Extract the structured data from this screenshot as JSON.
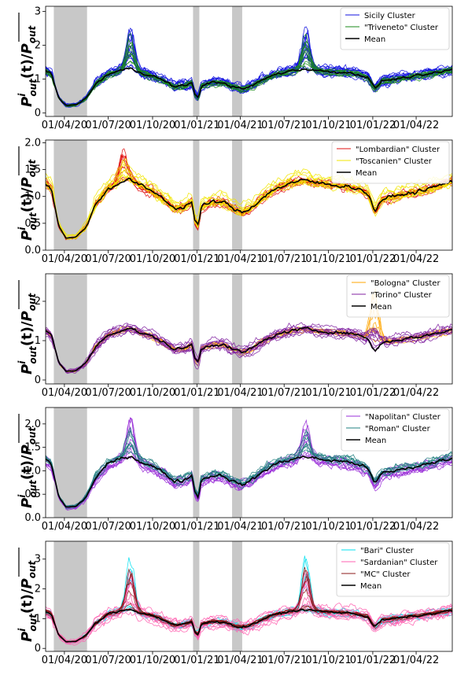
{
  "figure": {
    "x_tick_labels": [
      "01/04/20",
      "01/07/20",
      "01/10/20",
      "01/01/21",
      "01/04/21",
      "01/07/21",
      "01/10/21",
      "01/01/22",
      "01/04/22"
    ],
    "shaded_periods": [
      [
        "2020-03-10",
        "2020-05-18"
      ],
      [
        "2020-12-24",
        "2021-01-06"
      ],
      [
        "2021-03-15",
        "2021-04-05"
      ]
    ],
    "date_range": [
      "2020-02-22",
      "2022-06-15"
    ]
  },
  "chart_data": [
    {
      "type": "line",
      "ylabel": "P^i_out(t)/P_out (mean)",
      "ylim": [
        -0.1,
        3.15
      ],
      "yticks": [
        0,
        1,
        2,
        3
      ],
      "legend_position": "top-right",
      "series": [
        {
          "name": "Sicily Cluster",
          "color": "#1010e0",
          "lines": 16,
          "spread": 0.18
        },
        {
          "name": "\"Triveneto\" Cluster",
          "color": "#1a8a1a",
          "lines": 10,
          "spread": 0.1
        },
        {
          "name": "Mean",
          "color": "#000000",
          "mean": true
        }
      ],
      "peaks": [
        {
          "date": "2020-08-16",
          "value": 2.95
        },
        {
          "date": "2021-08-15",
          "value": 2.9
        }
      ]
    },
    {
      "type": "line",
      "ylabel": "P^i_out(t)/P_out (mean)",
      "ylim": [
        0.0,
        2.05
      ],
      "yticks": [
        0.0,
        0.5,
        1.0,
        1.5,
        2.0
      ],
      "legend_position": "top-right",
      "series": [
        {
          "name": "\"Lombardian\" Cluster",
          "color": "#e01010",
          "lines": 12,
          "spread": 0.1
        },
        {
          "name": "\"Toscanien\" Cluster",
          "color": "#f2e600",
          "lines": 10,
          "spread": 0.12
        },
        {
          "name": "Mean",
          "color": "#000000",
          "mean": true
        }
      ],
      "peaks": [
        {
          "date": "2020-08-01",
          "value": 1.9
        }
      ]
    },
    {
      "type": "line",
      "ylabel": "P^i_out(t)/P_out (mean)",
      "ylim": [
        -0.1,
        2.7
      ],
      "yticks": [
        0,
        1,
        2
      ],
      "legend_position": "top-right",
      "series": [
        {
          "name": "\"Bologna\" Cluster",
          "color": "#ffa500",
          "lines": 8,
          "spread": 0.07
        },
        {
          "name": "\"Torino\" Cluster",
          "color": "#8020a0",
          "lines": 10,
          "spread": 0.14
        },
        {
          "name": "Mean",
          "color": "#000000",
          "mean": true
        }
      ],
      "peaks": [
        {
          "date": "2022-01-05",
          "value": 2.3
        }
      ]
    },
    {
      "type": "line",
      "ylabel": "P^i_out(t)/P_out (mean)",
      "ylim": [
        0.0,
        2.35
      ],
      "yticks": [
        0.0,
        0.5,
        1.0,
        1.5,
        2.0
      ],
      "legend_position": "top-right",
      "series": [
        {
          "name": "\"Napolitan\" Cluster",
          "color": "#9a30d8",
          "lines": 10,
          "spread": 0.13
        },
        {
          "name": "\"Roman\" Cluster",
          "color": "#208080",
          "lines": 8,
          "spread": 0.12
        },
        {
          "name": "Mean",
          "color": "#000000",
          "mean": true
        }
      ],
      "peaks": [
        {
          "date": "2020-08-16",
          "value": 2.25
        },
        {
          "date": "2021-08-15",
          "value": 2.15
        }
      ]
    },
    {
      "type": "line",
      "ylabel": "P^i_out(t)/P_out (mean)",
      "ylim": [
        -0.1,
        3.6
      ],
      "yticks": [
        0,
        1,
        2,
        3
      ],
      "legend_position": "top-right",
      "series": [
        {
          "name": "\"Bari\" Cluster",
          "color": "#00e0f0",
          "lines": 8,
          "spread": 0.12
        },
        {
          "name": "\"Sardanian\" Cluster",
          "color": "#ff60b0",
          "lines": 10,
          "spread": 0.2
        },
        {
          "name": "\"MC\" Cluster",
          "color": "#8b1a1a",
          "lines": 8,
          "spread": 0.08
        },
        {
          "name": "Mean",
          "color": "#000000",
          "mean": true
        }
      ],
      "peaks": [
        {
          "date": "2020-08-16",
          "value": 3.4
        },
        {
          "date": "2021-08-15",
          "value": 3.4
        }
      ]
    }
  ]
}
